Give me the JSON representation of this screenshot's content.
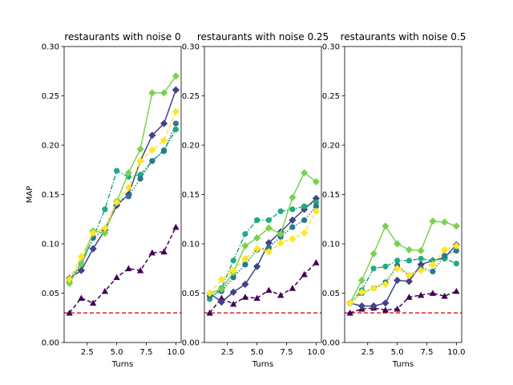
{
  "chart_data": [
    {
      "type": "line",
      "title": "restaurants with noise 0",
      "xlabel": "Turns",
      "ylabel": "MAP",
      "xlim": [
        0.55,
        10.45
      ],
      "ylim": [
        0,
        0.3
      ],
      "xticks": [
        2.5,
        5.0,
        7.5,
        10.0
      ],
      "yticks": [
        0.0,
        0.05,
        0.1,
        0.15,
        0.2,
        0.25,
        0.3
      ],
      "baseline": 0.03,
      "x": [
        1,
        2,
        3,
        4,
        5,
        6,
        7,
        8,
        9,
        10
      ],
      "series": [
        {
          "values": [
            0.03,
            0.045,
            0.04,
            0.052,
            0.066,
            0.075,
            0.073,
            0.091,
            0.092,
            0.117
          ]
        },
        {
          "values": [
            0.065,
            0.073,
            0.095,
            0.114,
            0.139,
            0.15,
            0.184,
            0.21,
            0.222,
            0.256
          ]
        },
        {
          "values": [
            0.062,
            0.079,
            0.106,
            0.135,
            0.174,
            0.168,
            0.17,
            0.184,
            0.195,
            0.216
          ]
        },
        {
          "values": [
            0.064,
            0.08,
            0.106,
            0.115,
            0.143,
            0.148,
            0.166,
            0.184,
            0.194,
            0.222
          ]
        },
        {
          "values": [
            0.06,
            0.08,
            0.113,
            0.111,
            0.143,
            0.172,
            0.196,
            0.253,
            0.253,
            0.27
          ]
        },
        {
          "values": [
            0.064,
            0.087,
            0.111,
            0.116,
            0.142,
            0.157,
            0.184,
            0.195,
            0.205,
            0.234
          ]
        }
      ]
    },
    {
      "type": "line",
      "title": "restaurants with noise 0.25",
      "xlabel": "Turns",
      "ylabel": "",
      "xlim": [
        0.55,
        10.45
      ],
      "ylim": [
        0,
        0.3
      ],
      "xticks": [
        2.5,
        5.0,
        7.5,
        10.0
      ],
      "yticks": [
        0.0,
        0.05,
        0.1,
        0.15,
        0.2,
        0.25,
        0.3
      ],
      "baseline": 0.03,
      "x": [
        1,
        2,
        3,
        4,
        5,
        6,
        7,
        8,
        9,
        10
      ],
      "series": [
        {
          "values": [
            0.03,
            0.045,
            0.039,
            0.046,
            0.045,
            0.053,
            0.048,
            0.055,
            0.069,
            0.081
          ]
        },
        {
          "values": [
            0.05,
            0.041,
            0.051,
            0.059,
            0.077,
            0.101,
            0.112,
            0.124,
            0.135,
            0.146
          ]
        },
        {
          "values": [
            0.044,
            0.055,
            0.083,
            0.11,
            0.124,
            0.124,
            0.133,
            0.135,
            0.138,
            0.142
          ]
        },
        {
          "values": [
            0.047,
            0.052,
            0.066,
            0.079,
            0.094,
            0.096,
            0.107,
            0.117,
            0.124,
            0.138
          ]
        },
        {
          "values": [
            0.05,
            0.054,
            0.071,
            0.098,
            0.106,
            0.116,
            0.11,
            0.147,
            0.172,
            0.163
          ]
        },
        {
          "values": [
            0.05,
            0.064,
            0.073,
            0.085,
            0.095,
            0.092,
            0.101,
            0.105,
            0.111,
            0.133
          ]
        }
      ]
    },
    {
      "type": "line",
      "title": "restaurants with noise 0.5",
      "xlabel": "Turns",
      "ylabel": "",
      "xlim": [
        0.55,
        10.45
      ],
      "ylim": [
        0,
        0.3
      ],
      "xticks": [
        2.5,
        5.0,
        7.5,
        10.0
      ],
      "yticks": [
        0.0,
        0.05,
        0.1,
        0.15,
        0.2,
        0.25,
        0.3
      ],
      "baseline": 0.03,
      "x": [
        1,
        2,
        3,
        4,
        5,
        6,
        7,
        8,
        9,
        10
      ],
      "series": [
        {
          "values": [
            0.03,
            0.034,
            0.035,
            0.033,
            0.034,
            0.046,
            0.048,
            0.05,
            0.047,
            0.052
          ]
        },
        {
          "values": [
            0.04,
            0.037,
            0.037,
            0.04,
            0.063,
            0.062,
            0.079,
            0.083,
            0.086,
            0.099
          ]
        },
        {
          "values": [
            0.04,
            0.053,
            0.075,
            0.077,
            0.083,
            0.083,
            0.085,
            0.083,
            0.085,
            0.08
          ]
        },
        {
          "values": [
            0.04,
            0.05,
            0.055,
            0.061,
            0.078,
            0.068,
            0.075,
            0.072,
            0.088,
            0.093
          ]
        },
        {
          "values": [
            0.04,
            0.063,
            0.09,
            0.118,
            0.1,
            0.094,
            0.093,
            0.123,
            0.122,
            0.118
          ]
        },
        {
          "values": [
            0.04,
            0.051,
            0.055,
            0.059,
            0.075,
            0.068,
            0.073,
            0.079,
            0.094,
            0.098
          ]
        }
      ]
    }
  ],
  "style": {
    "series_colors": [
      "#440154",
      "#414487",
      "#22a884",
      "#2a788e",
      "#7ad151",
      "#fde725"
    ],
    "series_markers": [
      "triangle",
      "diamond",
      "circle",
      "circle",
      "diamond",
      "diamond"
    ],
    "series_dashes": [
      "5,3",
      "",
      "6,2,1.5,2",
      "1.5,2",
      "",
      "5,3"
    ],
    "baseline_color": "#d62728"
  }
}
